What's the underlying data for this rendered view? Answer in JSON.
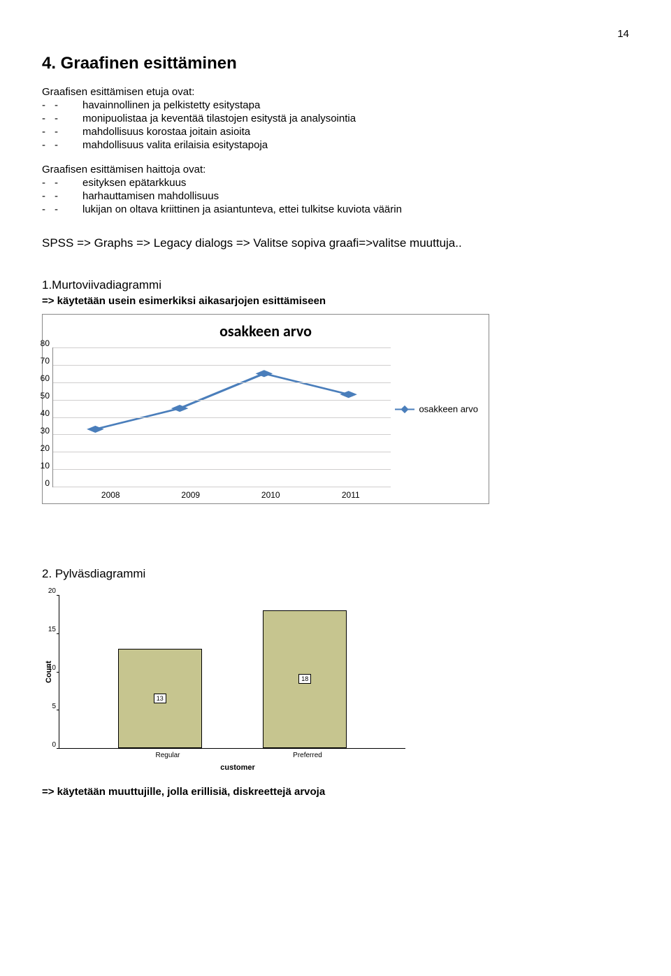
{
  "page_number": "14",
  "heading": "4. Graafinen esittäminen",
  "intro_pros": "Graafisen esittämisen etuja ovat:",
  "pros": [
    "havainnollinen ja pelkistetty esitystapa",
    "monipuolistaa ja keventää tilastojen esitystä ja analysointia",
    "mahdollisuus korostaa joitain asioita",
    "mahdollisuus valita erilaisia esitystapoja"
  ],
  "intro_cons": "Graafisen esittämisen haittoja ovat:",
  "cons": [
    "esityksen epätarkkuus",
    "harhauttamisen mahdollisuus",
    "lukijan on oltava kriittinen ja asiantunteva, ettei tulkitse kuviota väärin"
  ],
  "spss_line": "SPSS => Graphs => Legacy dialogs => Valitse sopiva graafi=>valitse muuttuja..",
  "sec1_title": "1.Murtoviivadiagrammi",
  "sec1_sub": "=> käytetään usein esimerkiksi aikasarjojen esittämiseen",
  "line_chart": {
    "title": "osakkeen arvo",
    "categories": [
      "2008",
      "2009",
      "2010",
      "2011"
    ],
    "values": [
      33,
      45,
      65,
      53
    ],
    "ylim": [
      0,
      80
    ],
    "ytick_step": 10,
    "line_color": "#4a7ebb",
    "grid_color": "#d0cece",
    "legend_label": "osakkeen arvo"
  },
  "sec2_title": "2. Pylväsdiagrammi",
  "bar_chart": {
    "categories": [
      "Regular",
      "Preferred"
    ],
    "values": [
      13,
      18
    ],
    "value_labels": [
      "13",
      "18"
    ],
    "ylim": [
      0,
      20
    ],
    "ytick_step": 5,
    "bar_color": "#c6c58f",
    "y_label": "Count",
    "x_label": "customer"
  },
  "footer": "=> käytetään muuttujille, jolla erillisiä, diskreettejä arvoja"
}
